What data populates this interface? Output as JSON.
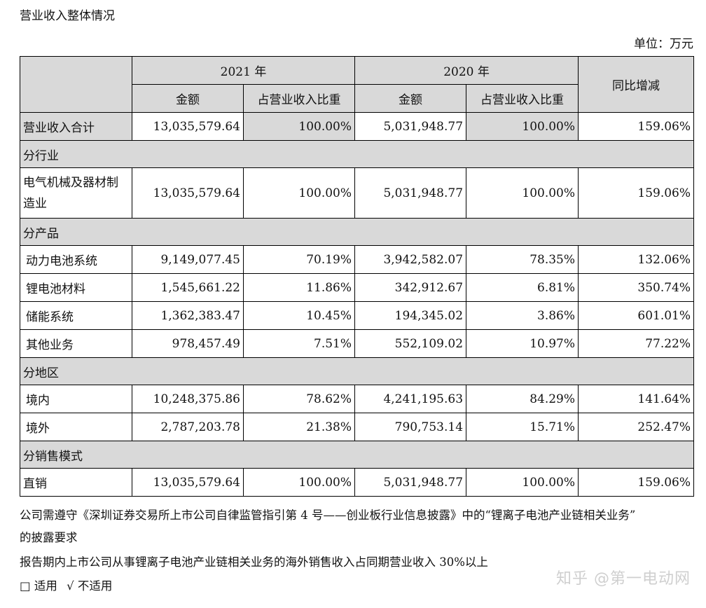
{
  "doc": {
    "title": "营业收入整体情况",
    "unit": "单位：万元"
  },
  "table": {
    "header": {
      "y2021": "2021 年",
      "y2020": "2020 年",
      "yoy": "同比增减",
      "amount": "金额",
      "ratio": "占营业收入比重"
    },
    "rows": [
      {
        "type": "data",
        "label": "营业收入合计",
        "a21": "13,035,579.64",
        "p21": "100.00%",
        "a20": "5,031,948.77",
        "p20": "100.00%",
        "yoy": "159.06%"
      },
      {
        "type": "section",
        "label": "分行业"
      },
      {
        "type": "data",
        "label": "电气机械及器材制造业",
        "a21": "13,035,579.64",
        "p21": "100.00%",
        "a20": "5,031,948.77",
        "p20": "100.00%",
        "yoy": "159.06%"
      },
      {
        "type": "section",
        "label": "分产品"
      },
      {
        "type": "data",
        "label": "动力电池系统",
        "a21": "9,149,077.45",
        "p21": "70.19%",
        "a20": "3,942,582.07",
        "p20": "78.35%",
        "yoy": "132.06%"
      },
      {
        "type": "data",
        "label": "锂电池材料",
        "a21": "1,545,661.22",
        "p21": "11.86%",
        "a20": "342,912.67",
        "p20": "6.81%",
        "yoy": "350.74%"
      },
      {
        "type": "data",
        "label": "储能系统",
        "a21": "1,362,383.47",
        "p21": "10.45%",
        "a20": "194,345.02",
        "p20": "3.86%",
        "yoy": "601.01%"
      },
      {
        "type": "data",
        "label": "其他业务",
        "a21": "978,457.49",
        "p21": "7.51%",
        "a20": "552,109.02",
        "p20": "10.97%",
        "yoy": "77.22%"
      },
      {
        "type": "section",
        "label": "分地区"
      },
      {
        "type": "data",
        "label": "境内",
        "a21": "10,248,375.86",
        "p21": "78.62%",
        "a20": "4,241,195.63",
        "p20": "84.29%",
        "yoy": "141.64%"
      },
      {
        "type": "data",
        "label": "境外",
        "a21": "2,787,203.78",
        "p21": "21.38%",
        "a20": "790,753.14",
        "p20": "15.71%",
        "yoy": "252.47%"
      },
      {
        "type": "section",
        "label": "分销售模式"
      },
      {
        "type": "data",
        "label": "直销",
        "a21": "13,035,579.64",
        "p21": "100.00%",
        "a20": "5,031,948.77",
        "p20": "100.00%",
        "yoy": "159.06%"
      }
    ]
  },
  "notes": {
    "line1": "公司需遵守《深圳证券交易所上市公司自律监管指引第 4 号——创业板行业信息披露》中的“锂离子电池产业链相关业务”",
    "line2": "的披露要求",
    "line3": "报告期内上市公司从事锂离子电池产业链相关业务的海外销售收入占同期营业收入 30%以上",
    "opt_applicable": "□ 适用",
    "opt_not_applicable": "√ 不适用"
  },
  "watermark": "知乎 @第一电动网"
}
